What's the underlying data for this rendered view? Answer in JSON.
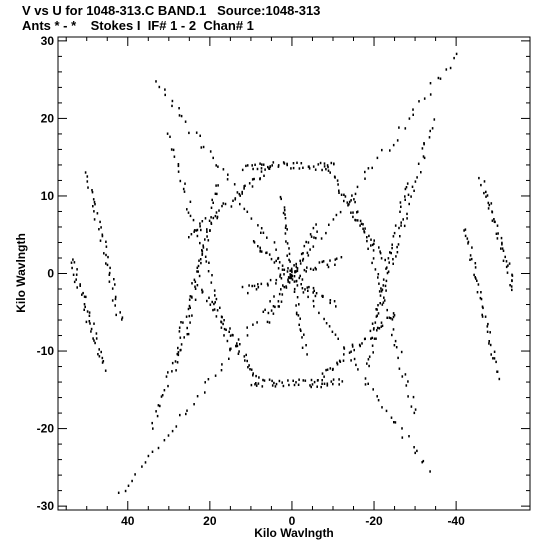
{
  "chart_data": {
    "type": "scatter",
    "title": "V vs U for 1048-313.C BAND.1   Source:1048-313",
    "subtitle": "Ants * - *    Stokes I  IF# 1 - 2  Chan# 1",
    "xlabel": "Kilo Wavlngth",
    "ylabel": "Kilo Wavlngth",
    "xlim": [
      57,
      -58
    ],
    "ylim": [
      -30.5,
      30.5
    ],
    "xticks": [
      40,
      20,
      0,
      -20,
      -40
    ],
    "yticks": [
      30,
      20,
      10,
      0,
      -10,
      -20,
      -30
    ],
    "xtick_labels": [
      "40",
      "20",
      "0",
      "-20",
      "-40"
    ],
    "ytick_labels": [
      "30",
      "20",
      "10",
      "0",
      "-10",
      "-20",
      "-30"
    ],
    "x_reversed": true,
    "grid": false,
    "marker": "dot",
    "marker_color": "#000000",
    "tracks": [
      {
        "u": [
          0,
          42
        ],
        "v": [
          0,
          -28.5
        ]
      },
      {
        "u": [
          0,
          33
        ],
        "v": [
          0,
          25
        ]
      },
      {
        "u": [
          0,
          -40
        ],
        "v": [
          0,
          28.5
        ]
      },
      {
        "u": [
          0,
          -33
        ],
        "v": [
          0,
          -25
        ]
      },
      {
        "u": [
          18,
          28
        ],
        "v": [
          12,
          -12
        ]
      },
      {
        "u": [
          -18,
          -28
        ],
        "v": [
          -12,
          12
        ]
      },
      {
        "u": [
          15,
          30
        ],
        "v": [
          -10,
          18
        ]
      },
      {
        "u": [
          -15,
          -30
        ],
        "v": [
          10,
          -18
        ]
      },
      {
        "u": [
          20,
          34
        ],
        "v": [
          6,
          -20
        ]
      },
      {
        "u": [
          -20,
          -34
        ],
        "v": [
          -6,
          20
        ]
      },
      {
        "u": [
          5,
          25
        ],
        "v": [
          14,
          5
        ]
      },
      {
        "u": [
          -5,
          -25
        ],
        "v": [
          -14,
          -5
        ]
      },
      {
        "u": [
          8,
          22
        ],
        "v": [
          -14,
          -2
        ]
      },
      {
        "u": [
          -8,
          -22
        ],
        "v": [
          14,
          2
        ]
      },
      {
        "u": [
          -10,
          12
        ],
        "v": [
          14,
          14
        ]
      },
      {
        "u": [
          10,
          -12
        ],
        "v": [
          -14,
          -14
        ]
      },
      {
        "u": [
          54,
          46
        ],
        "v": [
          2,
          -12
        ]
      },
      {
        "u": [
          -54,
          -46
        ],
        "v": [
          -2,
          12
        ]
      },
      {
        "u": [
          50,
          42
        ],
        "v": [
          13,
          -6
        ]
      },
      {
        "u": [
          -50,
          -42
        ],
        "v": [
          -13,
          6
        ]
      },
      {
        "u": [
          10,
          -10
        ],
        "v": [
          4,
          -4
        ]
      },
      {
        "u": [
          -6,
          6
        ],
        "v": [
          6,
          -6
        ]
      },
      {
        "u": [
          3,
          -3
        ],
        "v": [
          10,
          -10
        ]
      },
      {
        "u": [
          12,
          -12
        ],
        "v": [
          -2,
          2
        ]
      }
    ]
  }
}
